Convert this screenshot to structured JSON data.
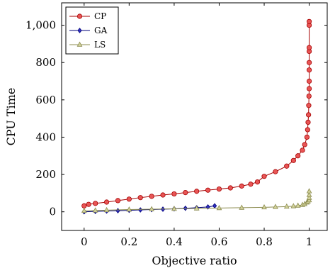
{
  "chart_data": {
    "type": "scatter",
    "title": "",
    "xlabel": "Objective ratio",
    "ylabel": "CPU Time",
    "xlim": [
      -0.1,
      1.08
    ],
    "ylim": [
      -100,
      1120
    ],
    "xticks": [
      0,
      0.2,
      0.4,
      0.6,
      0.8,
      1
    ],
    "xtick_labels": [
      "0",
      "0.2",
      "0.4",
      "0.6",
      "0.8",
      "1"
    ],
    "yticks": [
      0,
      200,
      400,
      600,
      800,
      1000
    ],
    "ytick_labels": [
      "0",
      "200",
      "400",
      "600",
      "800",
      "1,000"
    ],
    "grid": false,
    "legend_position": "top-left",
    "series": [
      {
        "name": "CP",
        "color": "#a50000",
        "fill": "#e85555",
        "marker": "circle",
        "x": [
          0,
          0.02,
          0.05,
          0.1,
          0.15,
          0.2,
          0.25,
          0.3,
          0.35,
          0.4,
          0.45,
          0.5,
          0.55,
          0.6,
          0.65,
          0.7,
          0.74,
          0.77,
          0.8,
          0.85,
          0.9,
          0.93,
          0.95,
          0.97,
          0.98,
          0.99,
          0.993,
          0.995,
          0.997,
          0.998,
          0.999,
          1,
          1,
          1,
          1,
          1,
          1,
          1,
          1
        ],
        "y": [
          32,
          40,
          45,
          52,
          60,
          68,
          76,
          83,
          90,
          96,
          103,
          110,
          116,
          122,
          128,
          138,
          148,
          160,
          190,
          215,
          245,
          275,
          300,
          330,
          360,
          400,
          440,
          480,
          520,
          570,
          620,
          660,
          700,
          760,
          800,
          860,
          880,
          1000,
          1020
        ]
      },
      {
        "name": "GA",
        "color": "#00007a",
        "fill": "#3030c0",
        "marker": "diamond",
        "x": [
          0,
          0.05,
          0.1,
          0.15,
          0.2,
          0.25,
          0.3,
          0.35,
          0.4,
          0.45,
          0.5,
          0.55,
          0.58
        ],
        "y": [
          0,
          2,
          4,
          6,
          8,
          10,
          12,
          14,
          16,
          19,
          22,
          26,
          32
        ]
      },
      {
        "name": "LS",
        "color": "#8c8c50",
        "fill": "#d2d29a",
        "marker": "triangle",
        "x": [
          0,
          0.05,
          0.1,
          0.2,
          0.3,
          0.4,
          0.5,
          0.6,
          0.7,
          0.8,
          0.85,
          0.9,
          0.93,
          0.95,
          0.97,
          0.98,
          0.99,
          0.995,
          1,
          1,
          1,
          1
        ],
        "y": [
          5,
          7,
          9,
          12,
          14,
          16,
          18,
          20,
          22,
          24,
          26,
          28,
          30,
          33,
          37,
          42,
          50,
          56,
          62,
          75,
          90,
          110
        ]
      }
    ]
  }
}
